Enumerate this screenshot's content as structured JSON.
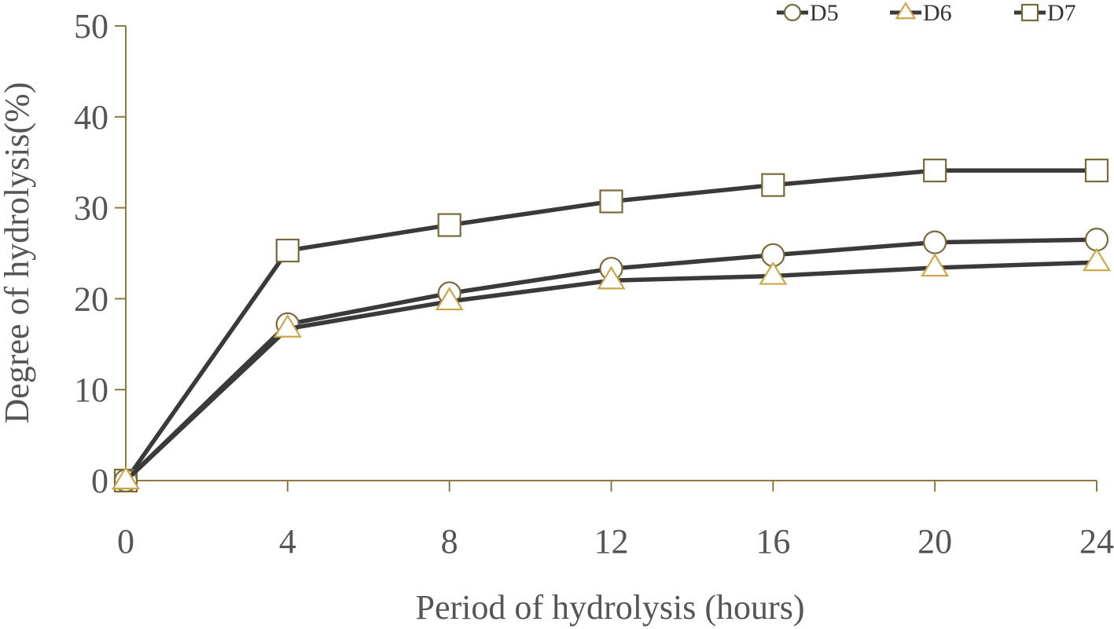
{
  "chart_data": {
    "type": "line",
    "title": "",
    "xlabel": "Period of hydrolysis (hours)",
    "ylabel": "Degree of hydrolysis(%)",
    "x": [
      0,
      4,
      8,
      12,
      16,
      20,
      24
    ],
    "xlim": [
      0,
      24
    ],
    "ylim": [
      0,
      50
    ],
    "xticks": [
      "0",
      "4",
      "8",
      "12",
      "16",
      "20",
      "24"
    ],
    "yticks": [
      "0",
      "10",
      "20",
      "30",
      "40",
      "50"
    ],
    "grid": false,
    "legend_position": "top-right",
    "series": [
      {
        "name": "D5",
        "marker": "circle",
        "values": [
          0,
          17.2,
          20.6,
          23.3,
          24.8,
          26.2,
          26.5
        ]
      },
      {
        "name": "D6",
        "marker": "triangle",
        "values": [
          0,
          16.7,
          19.7,
          22.0,
          22.5,
          23.4,
          24.0
        ]
      },
      {
        "name": "D7",
        "marker": "square",
        "values": [
          0,
          25.3,
          28.1,
          30.7,
          32.5,
          34.1,
          34.1
        ]
      }
    ],
    "colors": {
      "line": "#3a3a3a",
      "axis": "#8a7a3c",
      "marker_circle": "#7a6a3a",
      "marker_triangle": "#c9a74a",
      "marker_square": "#7a6a3a"
    }
  }
}
